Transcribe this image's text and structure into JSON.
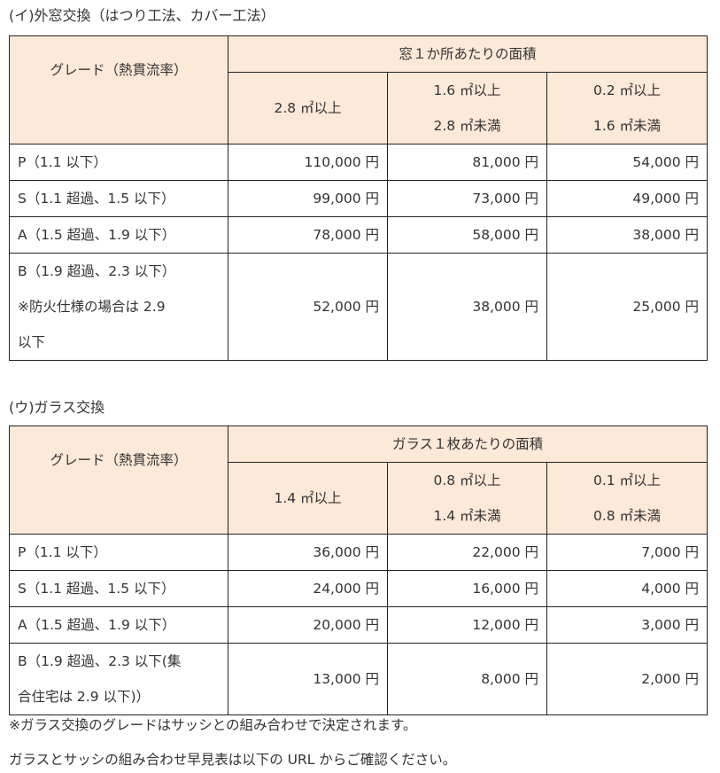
{
  "section_i": {
    "title": "(イ)外窓交換（はつり工法、カバー工法）",
    "grade_header": "グレード（熱貫流率）",
    "area_header": "窓１か所あたりの面積",
    "columns": [
      [
        "2.8 ㎡以上"
      ],
      [
        "1.6 ㎡以上",
        "2.8 ㎡未満"
      ],
      [
        "0.2 ㎡以上",
        "1.6 ㎡未満"
      ]
    ],
    "rows": [
      {
        "grade": [
          "P（1.1 以下）"
        ],
        "values": [
          "110,000 円",
          "81,000 円",
          "54,000 円"
        ]
      },
      {
        "grade": [
          "S（1.1 超過、1.5 以下）"
        ],
        "values": [
          "99,000 円",
          "73,000 円",
          "49,000 円"
        ]
      },
      {
        "grade": [
          "A（1.5 超過、1.9 以下）"
        ],
        "values": [
          "78,000 円",
          "58,000 円",
          "38,000 円"
        ]
      },
      {
        "grade": [
          "B（1.9 超過、2.3 以下）",
          "※防火仕様の場合は 2.9",
          "以下"
        ],
        "values": [
          "52,000 円",
          "38,000 円",
          "25,000 円"
        ]
      }
    ]
  },
  "section_u": {
    "title": "(ウ)ガラス交換",
    "grade_header": "グレード（熱貫流率）",
    "area_header": "ガラス１枚あたりの面積",
    "columns": [
      [
        "1.4 ㎡以上"
      ],
      [
        "0.8 ㎡以上",
        "1.4 ㎡未満"
      ],
      [
        "0.1 ㎡以上",
        "0.8 ㎡未満"
      ]
    ],
    "rows": [
      {
        "grade": [
          "P（1.1 以下）"
        ],
        "values": [
          "36,000 円",
          "22,000 円",
          "7,000 円"
        ]
      },
      {
        "grade": [
          "S（1.1 超過、1.5 以下）"
        ],
        "values": [
          "24,000 円",
          "16,000 円",
          "4,000 円"
        ]
      },
      {
        "grade": [
          "A（1.5 超過、1.9 以下）"
        ],
        "values": [
          "20,000 円",
          "12,000 円",
          "3,000 円"
        ]
      },
      {
        "grade": [
          "B（1.9 超過、2.3 以下(集",
          "合住宅は 2.9 以下)）"
        ],
        "values": [
          "13,000 円",
          "8,000 円",
          "2,000 円"
        ]
      }
    ]
  },
  "notes": [
    "※ガラス交換のグレードはサッシとの組み合わせで決定されます。",
    "ガラスとサッシの組み合わせ早見表は以下の URL からご確認ください。"
  ],
  "colors": {
    "header_bg": "#fce9d8",
    "border": "#222222",
    "text": "#333333"
  }
}
